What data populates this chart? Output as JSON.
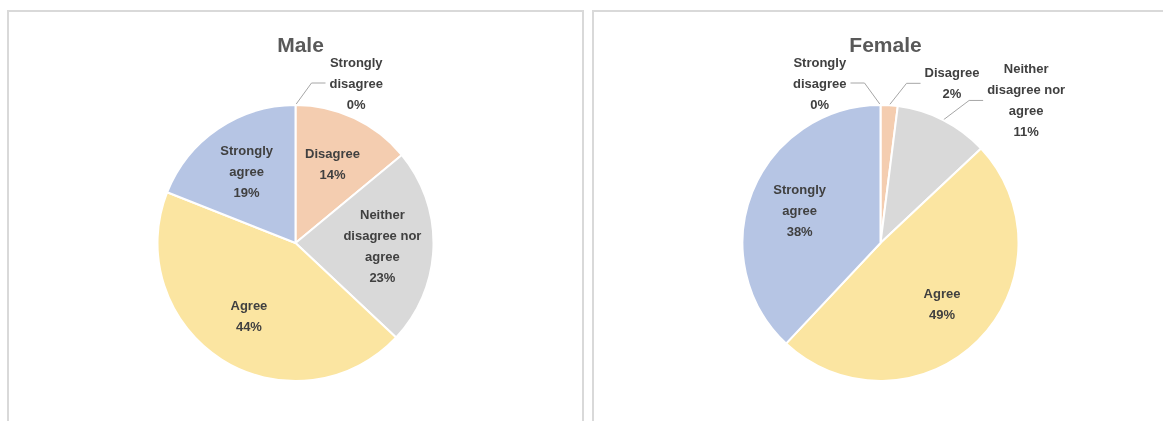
{
  "chart_data": [
    {
      "type": "pie",
      "title": "Male",
      "categories": [
        "Strongly disagree",
        "Disagree",
        "Neither disagree nor agree",
        "Agree",
        "Strongly agree"
      ],
      "values": [
        0,
        14,
        23,
        44,
        19
      ],
      "value_labels": [
        "0%",
        "14%",
        "23%",
        "44%",
        "19%"
      ],
      "colors": [
        "#b4c7e7",
        "#f4cdb0",
        "#d9d9d9",
        "#fbe5a1",
        "#b6c5e4"
      ]
    },
    {
      "type": "pie",
      "title": "Female",
      "categories": [
        "Strongly disagree",
        "Disagree",
        "Neither disagree nor agree",
        "Agree",
        "Strongly agree"
      ],
      "values": [
        0,
        2,
        11,
        49,
        38
      ],
      "value_labels": [
        "0%",
        "2%",
        "11%",
        "49%",
        "38%"
      ],
      "colors": [
        "#b4c7e7",
        "#f4cdb0",
        "#d9d9d9",
        "#fbe5a1",
        "#b6c5e4"
      ]
    }
  ]
}
